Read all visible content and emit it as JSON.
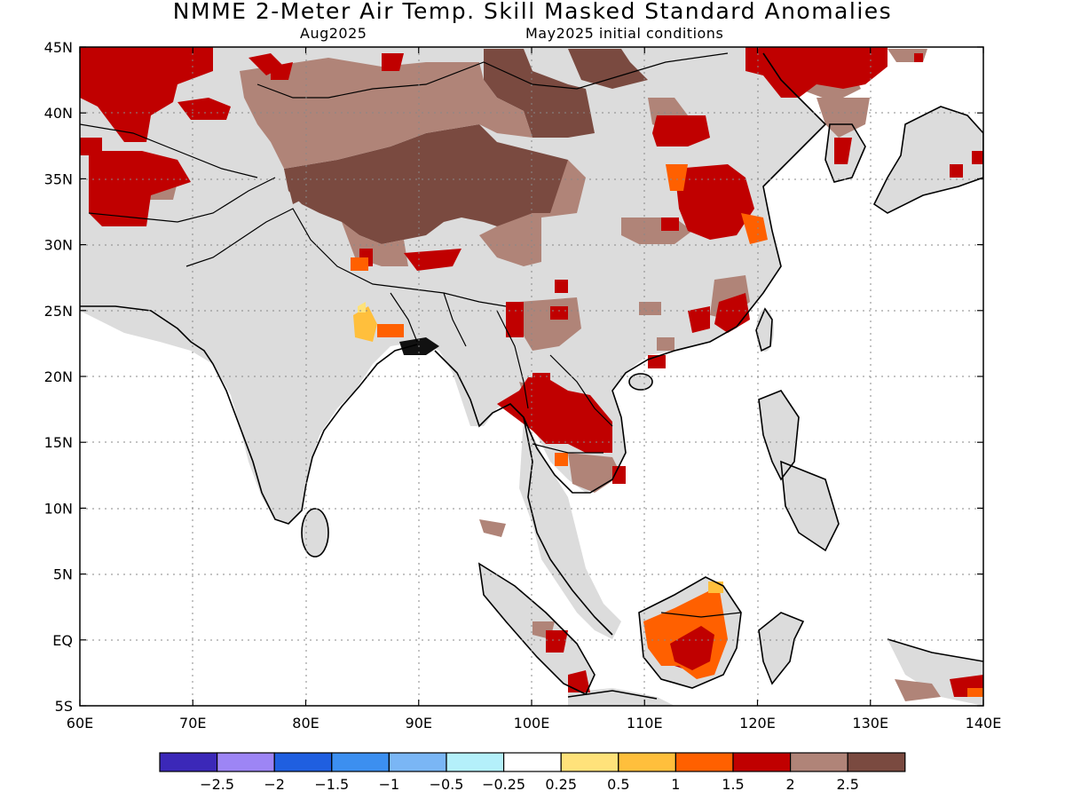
{
  "header": {
    "title": "NMME 2-Meter Air Temp. Skill Masked Standard Anomalies",
    "valid_month": "Aug2025",
    "initial_conditions": "May2025 initial conditions"
  },
  "map": {
    "lon_range": [
      60,
      140
    ],
    "lat_range": [
      -5,
      45
    ],
    "x_ticks": [
      "60E",
      "70E",
      "80E",
      "90E",
      "100E",
      "110E",
      "120E",
      "130E",
      "140E"
    ],
    "y_ticks": [
      "45N",
      "40N",
      "35N",
      "30N",
      "25N",
      "20N",
      "15N",
      "10N",
      "5N",
      "EQ",
      "5S"
    ],
    "grid": true,
    "land_no_skill_color": "#dcdcdc"
  },
  "colorbar": {
    "colors": [
      "#3b28b8",
      "#9d85f5",
      "#1f5fe0",
      "#3c8ff0",
      "#7ab6f5",
      "#b4f0fa",
      "#ffffff",
      "#ffe27a",
      "#ffbf3c",
      "#ff6000",
      "#c00000",
      "#b08478",
      "#7a4a40"
    ],
    "labels": [
      "-2.5",
      "-2",
      "-1.5",
      "-1",
      "-0.5",
      "-0.25",
      "0.25",
      "0.5",
      "1",
      "1.5",
      "2",
      "2.5"
    ]
  },
  "regions": [
    {
      "name": "tibet-plateau",
      "category": "2.5",
      "color": "#7a4a40"
    },
    {
      "name": "mongolia",
      "category": "2.5",
      "color": "#7a4a40"
    },
    {
      "name": "northwest-china",
      "category": "2",
      "color": "#b08478"
    },
    {
      "name": "central-asia",
      "category": "1.5",
      "color": "#c00000"
    },
    {
      "name": "northeast-china",
      "category": "1.5",
      "color": "#c00000"
    },
    {
      "name": "east-china",
      "category": "1.5",
      "color": "#c00000"
    },
    {
      "name": "thailand-cambodia",
      "category": "1.5",
      "color": "#c00000"
    },
    {
      "name": "borneo",
      "category": "1",
      "color": "#ff6000"
    },
    {
      "name": "india",
      "category": "no-skill",
      "color": "#dcdcdc"
    }
  ]
}
